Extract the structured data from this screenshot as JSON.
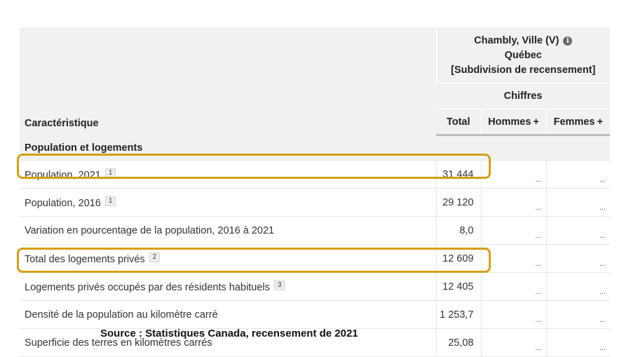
{
  "header": {
    "geo_name": "Chambly, Ville (V)",
    "province": "Québec",
    "geo_type": "[Subdivision de recensement]",
    "chiffres": "Chiffres",
    "characteristic": "Caractéristique",
    "total": "Total",
    "hommes": "Hommes",
    "femmes": "Femmes",
    "plus": "+",
    "info_icon": "i"
  },
  "section": {
    "title": "Population et logements"
  },
  "rows": [
    {
      "label": "Population, 2021",
      "footnote": "1",
      "total": "31 444",
      "hommes": "...",
      "femmes": "..."
    },
    {
      "label": "Population, 2016",
      "footnote": "1",
      "total": "29 120",
      "hommes": "...",
      "femmes": "..."
    },
    {
      "label": "Variation en pourcentage de la population, 2016 à 2021",
      "footnote": "",
      "total": "8,0",
      "hommes": "...",
      "femmes": "..."
    },
    {
      "label": "Total des logements privés",
      "footnote": "2",
      "total": "12 609",
      "hommes": "...",
      "femmes": "..."
    },
    {
      "label": "Logements privés occupés par des résidents habituels",
      "footnote": "3",
      "total": "12 405",
      "hommes": "...",
      "femmes": "..."
    },
    {
      "label": "Densité de la population au kilomètre carré",
      "footnote": "",
      "total": "1 253,7",
      "hommes": "...",
      "femmes": "..."
    },
    {
      "label": "Superficie des terres en kilomètres carrés",
      "footnote": "",
      "total": "25,08",
      "hommes": "...",
      "femmes": "..."
    }
  ],
  "source": "Source : Statistiques Canada, recensement de 2021",
  "colors": {
    "highlight": "#d4a012",
    "header_bg": "#f0f2f2"
  }
}
